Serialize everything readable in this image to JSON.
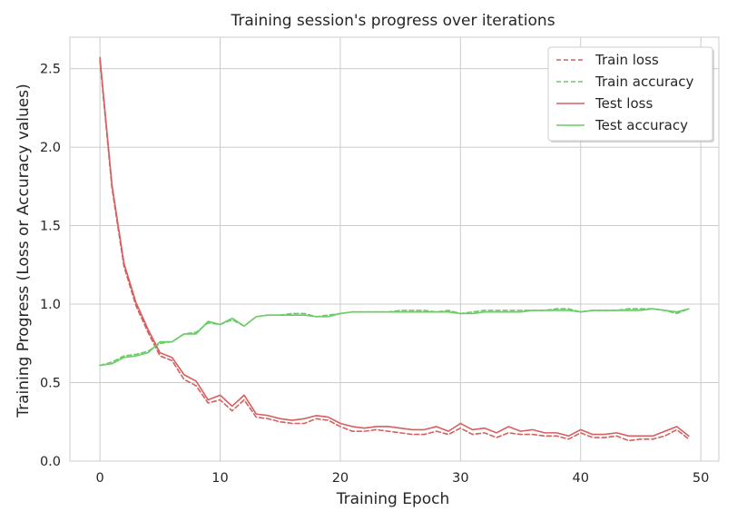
{
  "chart_data": {
    "type": "line",
    "title": "Training session's progress over iterations",
    "xlabel": "Training Epoch",
    "ylabel": "Training Progress (Loss or Accuracy values)",
    "xlim": [
      -2.5,
      51.5
    ],
    "ylim": [
      0.0,
      2.7
    ],
    "x_ticks": [
      "0",
      "10",
      "20",
      "30",
      "40",
      "50"
    ],
    "y_ticks": [
      "0.0",
      "0.5",
      "1.0",
      "1.5",
      "2.0",
      "2.5"
    ],
    "x_tick_values": [
      0,
      10,
      20,
      30,
      40,
      50
    ],
    "y_tick_values": [
      0.0,
      0.5,
      1.0,
      1.5,
      2.0,
      2.5
    ],
    "grid": true,
    "legend_position": "top-right",
    "x": [
      0,
      1,
      2,
      3,
      4,
      5,
      6,
      7,
      8,
      9,
      10,
      11,
      12,
      13,
      14,
      15,
      16,
      17,
      18,
      19,
      20,
      21,
      22,
      23,
      24,
      25,
      26,
      27,
      28,
      29,
      30,
      31,
      32,
      33,
      34,
      35,
      36,
      37,
      38,
      39,
      40,
      41,
      42,
      43,
      44,
      45,
      46,
      47,
      48,
      49
    ],
    "series": [
      {
        "name": "Train loss",
        "color": "#d65f5f",
        "dash": true,
        "values": [
          2.55,
          1.74,
          1.24,
          0.99,
          0.82,
          0.67,
          0.64,
          0.52,
          0.48,
          0.37,
          0.39,
          0.32,
          0.39,
          0.28,
          0.27,
          0.25,
          0.24,
          0.24,
          0.27,
          0.26,
          0.22,
          0.19,
          0.19,
          0.2,
          0.19,
          0.18,
          0.17,
          0.17,
          0.19,
          0.17,
          0.21,
          0.17,
          0.18,
          0.15,
          0.18,
          0.17,
          0.17,
          0.16,
          0.16,
          0.14,
          0.18,
          0.15,
          0.15,
          0.16,
          0.13,
          0.14,
          0.14,
          0.16,
          0.2,
          0.14
        ]
      },
      {
        "name": "Train accuracy",
        "color": "#6acc65",
        "dash": true,
        "values": [
          0.61,
          0.63,
          0.67,
          0.68,
          0.7,
          0.75,
          0.76,
          0.81,
          0.82,
          0.88,
          0.87,
          0.9,
          0.86,
          0.92,
          0.93,
          0.93,
          0.94,
          0.94,
          0.92,
          0.93,
          0.94,
          0.95,
          0.95,
          0.95,
          0.95,
          0.96,
          0.96,
          0.96,
          0.95,
          0.96,
          0.94,
          0.95,
          0.96,
          0.96,
          0.96,
          0.96,
          0.96,
          0.96,
          0.97,
          0.97,
          0.95,
          0.96,
          0.96,
          0.96,
          0.97,
          0.97,
          0.97,
          0.96,
          0.94,
          0.97
        ]
      },
      {
        "name": "Test loss",
        "color": "#d65f5f",
        "dash": false,
        "values": [
          2.57,
          1.76,
          1.26,
          1.01,
          0.84,
          0.69,
          0.66,
          0.55,
          0.51,
          0.39,
          0.42,
          0.35,
          0.42,
          0.3,
          0.29,
          0.27,
          0.26,
          0.27,
          0.29,
          0.28,
          0.24,
          0.22,
          0.21,
          0.22,
          0.22,
          0.21,
          0.2,
          0.2,
          0.22,
          0.19,
          0.24,
          0.2,
          0.21,
          0.18,
          0.22,
          0.19,
          0.2,
          0.18,
          0.18,
          0.16,
          0.2,
          0.17,
          0.17,
          0.18,
          0.16,
          0.16,
          0.16,
          0.19,
          0.22,
          0.16
        ]
      },
      {
        "name": "Test accuracy",
        "color": "#6acc65",
        "dash": false,
        "values": [
          0.61,
          0.62,
          0.66,
          0.67,
          0.69,
          0.76,
          0.76,
          0.81,
          0.81,
          0.89,
          0.87,
          0.91,
          0.86,
          0.92,
          0.93,
          0.93,
          0.93,
          0.93,
          0.92,
          0.92,
          0.94,
          0.95,
          0.95,
          0.95,
          0.95,
          0.95,
          0.95,
          0.95,
          0.95,
          0.95,
          0.94,
          0.94,
          0.95,
          0.95,
          0.95,
          0.95,
          0.96,
          0.96,
          0.96,
          0.96,
          0.95,
          0.96,
          0.96,
          0.96,
          0.96,
          0.96,
          0.97,
          0.96,
          0.95,
          0.97
        ]
      }
    ]
  }
}
